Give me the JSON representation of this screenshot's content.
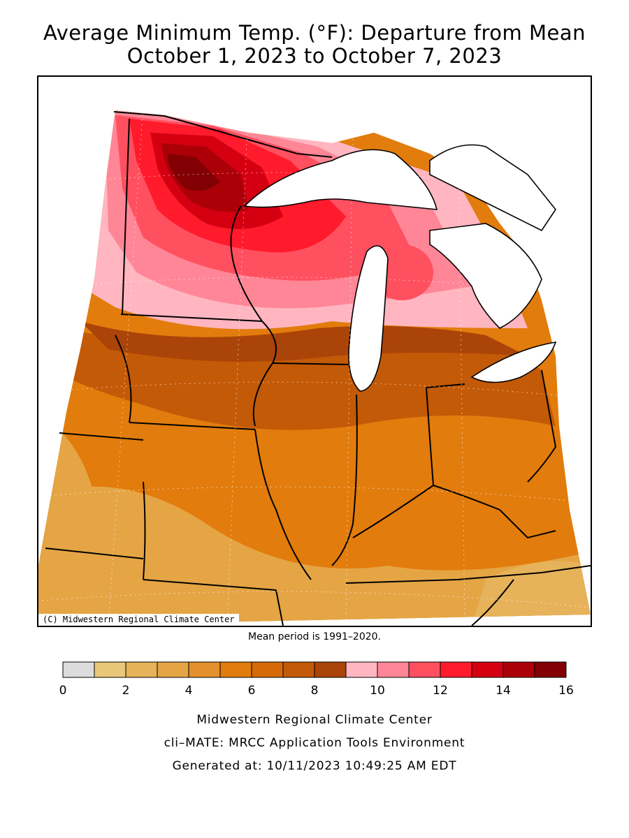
{
  "header": {
    "title_line1": "Average Minimum Temp. (°F): Departure from Mean",
    "title_line2": "October 1, 2023 to October 7, 2023"
  },
  "map": {
    "credit": "(C) Midwestern Regional Climate Center",
    "mean_note": "Mean period is 1991–2020."
  },
  "legend": {
    "tick_labels": [
      "0",
      "2",
      "4",
      "6",
      "8",
      "10",
      "12",
      "14",
      "16"
    ],
    "bins": [
      {
        "from": 0,
        "to": 1,
        "color": "#dcdcdc"
      },
      {
        "from": 1,
        "to": 2,
        "color": "#e8c878"
      },
      {
        "from": 2,
        "to": 3,
        "color": "#e6b25a"
      },
      {
        "from": 3,
        "to": 4,
        "color": "#e5a545"
      },
      {
        "from": 4,
        "to": 5,
        "color": "#e4902c"
      },
      {
        "from": 5,
        "to": 6,
        "color": "#e27c0c"
      },
      {
        "from": 6,
        "to": 7,
        "color": "#d46a08"
      },
      {
        "from": 7,
        "to": 8,
        "color": "#c35a07"
      },
      {
        "from": 8,
        "to": 9,
        "color": "#ab4408"
      },
      {
        "from": 9,
        "to": 10,
        "color": "#ffb6c1"
      },
      {
        "from": 10,
        "to": 11,
        "color": "#ff8696"
      },
      {
        "from": 11,
        "to": 12,
        "color": "#ff5060"
      },
      {
        "from": 12,
        "to": 13,
        "color": "#ff1a2c"
      },
      {
        "from": 13,
        "to": 14,
        "color": "#d40012"
      },
      {
        "from": 14,
        "to": 15,
        "color": "#ac0008"
      },
      {
        "from": 15,
        "to": 16,
        "color": "#820004"
      }
    ]
  },
  "footer": {
    "line1": "Midwestern Regional Climate Center",
    "line2": "cli–MATE: MRCC Application Tools Environment",
    "line3": "Generated at: 10/11/2023 10:49:25 AM EDT"
  }
}
